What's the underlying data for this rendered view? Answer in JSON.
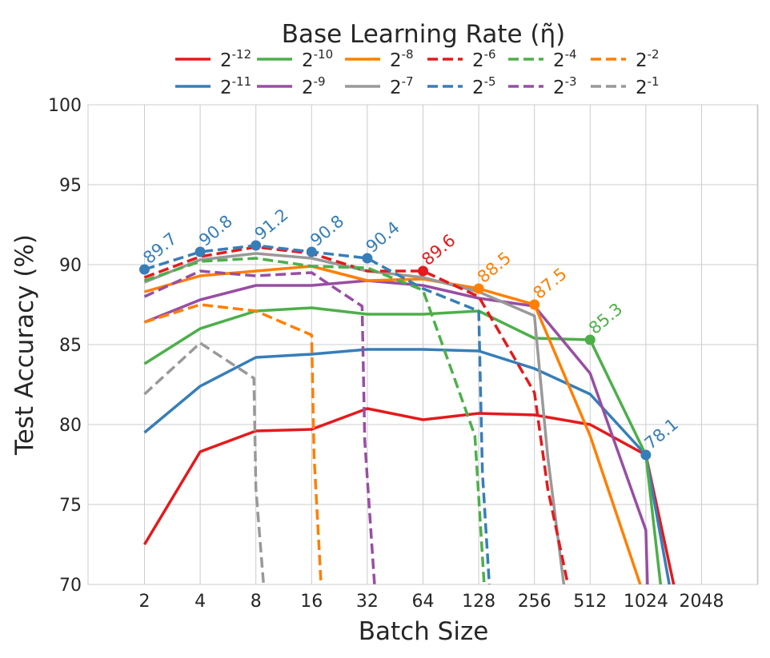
{
  "chart_data": {
    "type": "line",
    "title": "Base Learning Rate (η̃)",
    "xlabel": "Batch Size",
    "ylabel": "Test Accuracy (%)",
    "x_scale": "log2",
    "categories": [
      "2",
      "4",
      "8",
      "16",
      "32",
      "64",
      "128",
      "256",
      "512",
      "1024",
      "2048"
    ],
    "x": [
      2,
      4,
      8,
      16,
      32,
      64,
      128,
      256,
      512,
      1024,
      2048
    ],
    "ylim": [
      70,
      100
    ],
    "yticks": [
      70,
      75,
      80,
      85,
      90,
      95,
      100
    ],
    "grid": true,
    "legend_location": "top",
    "legend_title_inline": true,
    "series": [
      {
        "name": "2^-12",
        "base": "2",
        "exp": "-12",
        "color": "#e41a1c",
        "dash": "solid",
        "x": [
          2,
          4,
          8,
          16,
          32,
          64,
          128,
          256,
          512,
          1024,
          1448
        ],
        "values": [
          72.5,
          78.3,
          79.6,
          79.7,
          81.0,
          80.3,
          80.7,
          80.6,
          80.0,
          78.1,
          70.0
        ]
      },
      {
        "name": "2^-11",
        "base": "2",
        "exp": "-11",
        "color": "#377eb8",
        "dash": "solid",
        "x": [
          2,
          4,
          8,
          16,
          32,
          64,
          128,
          256,
          512,
          1024,
          1371
        ],
        "values": [
          79.5,
          82.4,
          84.2,
          84.4,
          84.7,
          84.7,
          84.6,
          83.5,
          81.9,
          78.1,
          70.0
        ]
      },
      {
        "name": "2^-10",
        "base": "2",
        "exp": "-10",
        "color": "#4daf4a",
        "dash": "solid",
        "x": [
          2,
          4,
          8,
          16,
          32,
          64,
          128,
          256,
          512,
          1024,
          1230
        ],
        "values": [
          83.8,
          86.0,
          87.1,
          87.3,
          86.9,
          86.9,
          87.1,
          85.4,
          85.3,
          78.1,
          70.0
        ]
      },
      {
        "name": "2^-9",
        "base": "2",
        "exp": "-9",
        "color": "#984ea3",
        "dash": "solid",
        "x": [
          2,
          4,
          8,
          16,
          32,
          64,
          128,
          256,
          512,
          1024,
          1045
        ],
        "values": [
          86.4,
          87.8,
          88.7,
          88.7,
          89.0,
          88.7,
          87.9,
          87.4,
          83.2,
          73.4,
          70.0
        ]
      },
      {
        "name": "2^-8",
        "base": "2",
        "exp": "-8",
        "color": "#ff7f00",
        "dash": "solid",
        "x": [
          2,
          4,
          8,
          16,
          32,
          64,
          128,
          256,
          512,
          955
        ],
        "values": [
          88.3,
          89.3,
          89.6,
          89.9,
          89.0,
          89.1,
          88.5,
          87.5,
          79.3,
          70.0
        ]
      },
      {
        "name": "2^-7",
        "base": "2",
        "exp": "-7",
        "color": "#999999",
        "dash": "solid",
        "x": [
          2,
          4,
          8,
          16,
          32,
          64,
          128,
          256,
          302,
          369
        ],
        "values": [
          88.9,
          90.3,
          90.7,
          90.4,
          89.6,
          89.2,
          88.3,
          86.8,
          78.0,
          70.0
        ]
      },
      {
        "name": "2^-6",
        "base": "2",
        "exp": "-6",
        "color": "#e41a1c",
        "dash": "dashed",
        "x": [
          2,
          4,
          8,
          16,
          32,
          64,
          128,
          256,
          302,
          388
        ],
        "values": [
          89.2,
          90.5,
          91.1,
          90.7,
          89.6,
          89.6,
          88.0,
          82.0,
          76.0,
          70.0
        ]
      },
      {
        "name": "2^-5",
        "base": "2",
        "exp": "-5",
        "color": "#377eb8",
        "dash": "dashed",
        "x": [
          2,
          4,
          8,
          16,
          32,
          64,
          128,
          134,
          146
        ],
        "values": [
          89.7,
          90.8,
          91.2,
          90.8,
          90.4,
          88.5,
          87.1,
          77.0,
          70.0
        ]
      },
      {
        "name": "2^-4",
        "base": "2",
        "exp": "-4",
        "color": "#4daf4a",
        "dash": "dashed",
        "x": [
          2,
          4,
          8,
          16,
          32,
          64,
          122,
          137
        ],
        "values": [
          89.0,
          90.2,
          90.4,
          89.9,
          89.8,
          88.4,
          79.3,
          70.0
        ]
      },
      {
        "name": "2^-3",
        "base": "2",
        "exp": "-3",
        "color": "#984ea3",
        "dash": "dashed",
        "x": [
          2,
          4,
          8,
          16,
          30,
          31,
          35
        ],
        "values": [
          88.0,
          89.6,
          89.3,
          89.5,
          87.4,
          79.0,
          70.0
        ]
      },
      {
        "name": "2^-2",
        "base": "2",
        "exp": "-2",
        "color": "#ff7f00",
        "dash": "dashed",
        "x": [
          2,
          4,
          8,
          16,
          16.5,
          18
        ],
        "values": [
          86.4,
          87.5,
          87.1,
          85.6,
          78.0,
          70.0
        ]
      },
      {
        "name": "2^-1",
        "base": "2",
        "exp": "-1",
        "color": "#999999",
        "dash": "dashed",
        "x": [
          2,
          4,
          7.8,
          8,
          8.8
        ],
        "values": [
          81.9,
          85.1,
          82.9,
          76.0,
          70.0
        ]
      }
    ],
    "annotations": [
      {
        "x": 2,
        "y": 89.7,
        "text": "89.7",
        "color": "#377eb8"
      },
      {
        "x": 4,
        "y": 90.8,
        "text": "90.8",
        "color": "#377eb8"
      },
      {
        "x": 8,
        "y": 91.2,
        "text": "91.2",
        "color": "#377eb8"
      },
      {
        "x": 16,
        "y": 90.8,
        "text": "90.8",
        "color": "#377eb8"
      },
      {
        "x": 32,
        "y": 90.4,
        "text": "90.4",
        "color": "#377eb8"
      },
      {
        "x": 64,
        "y": 89.6,
        "text": "89.6",
        "color": "#e41a1c"
      },
      {
        "x": 128,
        "y": 88.5,
        "text": "88.5",
        "color": "#ff7f00"
      },
      {
        "x": 256,
        "y": 87.5,
        "text": "87.5",
        "color": "#ff7f00"
      },
      {
        "x": 512,
        "y": 85.3,
        "text": "85.3",
        "color": "#4daf4a"
      },
      {
        "x": 1024,
        "y": 78.1,
        "text": "78.1",
        "color": "#377eb8"
      }
    ]
  }
}
